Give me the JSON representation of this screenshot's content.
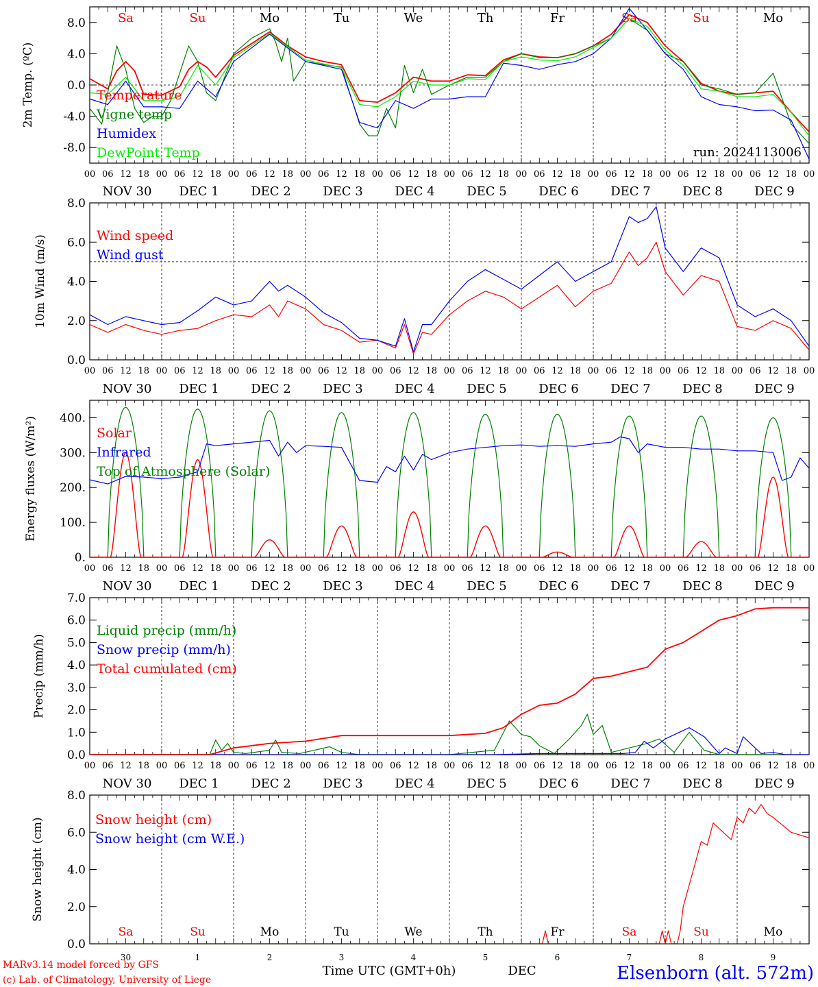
{
  "meta": {
    "run": "run: 2024113006",
    "credit_line1": "MARv3.14 model forced by GFS",
    "credit_line2": "(c) Lab. of Climatology, University of Liege",
    "xaxis_title": "Time UTC (GMT+0h)",
    "month": "DEC",
    "station": "Elsenborn (alt. 572m)"
  },
  "days": {
    "weekday": [
      "Sa",
      "Su",
      "Mo",
      "Tu",
      "We",
      "Th",
      "Fr",
      "Sa",
      "Su",
      "Mo"
    ],
    "weekend": [
      true,
      true,
      false,
      false,
      false,
      false,
      false,
      true,
      true,
      false
    ],
    "date_labels": [
      "NOV 30",
      "DEC  1",
      "DEC  2",
      "DEC  3",
      "DEC  4",
      "DEC  5",
      "DEC  6",
      "DEC  7",
      "DEC  8",
      "DEC  9"
    ],
    "day_numbers": [
      "30",
      "1",
      "2",
      "3",
      "4",
      "5",
      "6",
      "7",
      "8",
      "9"
    ],
    "hour_ticks": [
      "00",
      "06",
      "12",
      "18"
    ],
    "final_tick": "00"
  },
  "colors": {
    "red": "#ff0000",
    "green": "#008000",
    "blue": "#0000ff",
    "lightgreen": "#00ee00"
  },
  "chart_data": [
    {
      "type": "line",
      "ylabel": "2m Temp. (ºC)",
      "ylim": [
        -10,
        10
      ],
      "yticks": [
        "-8.0",
        "-4.0",
        "0.0",
        "4.0",
        "8.0"
      ],
      "ytick_values": [
        -8,
        -4,
        0,
        4,
        8
      ],
      "ref_line": 0,
      "x_unit": "hours since NOV 30 00 UTC",
      "series": [
        {
          "name": "Temperature",
          "color": "#ff0000",
          "x": [
            0,
            6,
            9,
            12,
            15,
            18,
            24,
            30,
            33,
            36,
            39,
            42,
            48,
            60,
            66,
            72,
            78,
            84,
            90,
            96,
            102,
            108,
            114,
            120,
            126,
            132,
            138,
            144,
            150,
            156,
            162,
            168,
            174,
            180,
            186,
            192,
            198,
            204,
            210,
            216,
            222,
            228,
            234,
            240
          ],
          "values": [
            0.8,
            -0.5,
            1.8,
            3.0,
            1.8,
            -1.2,
            -1.3,
            -0.2,
            2.0,
            3.0,
            2.3,
            1.0,
            3.8,
            6.8,
            5.0,
            3.6,
            3.0,
            2.6,
            -2.0,
            -2.2,
            -1.0,
            1.0,
            0.5,
            0.5,
            1.3,
            1.2,
            3.2,
            4.0,
            3.6,
            3.5,
            4.0,
            5.0,
            6.5,
            9.0,
            8.0,
            5.0,
            3.0,
            0.2,
            -0.8,
            -1.2,
            -1.0,
            -0.8,
            -3.5,
            -6.0
          ]
        },
        {
          "name": "Vigne temp",
          "color": "#008000",
          "x": [
            0,
            4,
            9,
            12,
            15,
            18,
            21,
            24,
            27,
            33,
            36,
            39,
            42,
            48,
            54,
            60,
            62,
            64,
            66,
            68,
            72,
            78,
            84,
            90,
            93,
            96,
            99,
            102,
            105,
            108,
            111,
            114,
            120,
            126,
            132,
            138,
            144,
            150,
            156,
            162,
            168,
            174,
            180,
            186,
            192,
            198,
            204,
            210,
            216,
            222,
            228,
            234,
            240
          ],
          "values": [
            -3.0,
            -5.0,
            5.0,
            2.0,
            -3.0,
            -4.8,
            -4.0,
            -4.0,
            -2.0,
            5.0,
            3.0,
            -1.0,
            -2.0,
            4.0,
            6.0,
            7.2,
            5.5,
            3.0,
            6.0,
            0.5,
            3.0,
            2.6,
            2.3,
            -5.0,
            -6.5,
            -6.5,
            -3.0,
            -5.5,
            2.5,
            -1.0,
            2.0,
            -1.2,
            0.0,
            1.0,
            1.0,
            3.0,
            4.0,
            3.5,
            3.5,
            4.0,
            5.0,
            6.0,
            8.5,
            7.0,
            4.0,
            3.0,
            0.0,
            -0.5,
            -1.2,
            -1.0,
            1.5,
            -5.0,
            -7.5
          ]
        },
        {
          "name": "Humidex",
          "color": "#0000ff",
          "x": [
            0,
            6,
            12,
            18,
            24,
            30,
            36,
            42,
            48,
            60,
            72,
            84,
            90,
            96,
            102,
            108,
            114,
            120,
            126,
            132,
            138,
            144,
            150,
            156,
            162,
            168,
            174,
            180,
            186,
            192,
            198,
            204,
            210,
            216,
            222,
            228,
            234,
            240
          ],
          "values": [
            -1.8,
            -2.5,
            0.5,
            -2.8,
            -2.8,
            -3.0,
            0.5,
            -1.5,
            3.0,
            6.5,
            3.0,
            2.0,
            -4.8,
            -5.5,
            -2.0,
            -3.0,
            -1.8,
            -1.8,
            -1.5,
            -1.5,
            2.8,
            2.5,
            2.0,
            2.6,
            3.0,
            4.0,
            6.0,
            9.8,
            7.0,
            4.0,
            2.0,
            -1.5,
            -2.5,
            -2.8,
            -3.3,
            -3.2,
            -4.5,
            -9.5
          ]
        },
        {
          "name": "DewPoint Temp",
          "color": "#00ee00",
          "x": [
            0,
            6,
            12,
            18,
            24,
            30,
            36,
            42,
            48,
            60,
            72,
            84,
            90,
            96,
            102,
            108,
            114,
            120,
            126,
            132,
            138,
            144,
            150,
            156,
            162,
            168,
            174,
            180,
            186,
            192,
            198,
            204,
            210,
            216,
            222,
            228,
            234,
            240
          ],
          "values": [
            -1.0,
            -1.2,
            1.0,
            -2.0,
            -2.0,
            -1.5,
            2.5,
            0.0,
            3.5,
            6.6,
            3.2,
            2.2,
            -2.5,
            -2.8,
            -1.5,
            0.5,
            0.0,
            0.0,
            0.8,
            0.7,
            3.0,
            3.6,
            3.2,
            3.1,
            3.6,
            4.8,
            6.0,
            8.5,
            7.5,
            4.5,
            2.5,
            -0.5,
            -0.8,
            -1.5,
            -1.5,
            -1.2,
            -3.5,
            -6.5
          ]
        }
      ]
    },
    {
      "type": "line",
      "ylabel": "10m Wind (m/s)",
      "ylim": [
        0,
        8
      ],
      "yticks": [
        "0.0",
        "2.0",
        "4.0",
        "6.0",
        "8.0"
      ],
      "ytick_values": [
        0,
        2,
        4,
        6,
        8
      ],
      "ref_line": 5,
      "x_unit": "hours since NOV 30 00 UTC",
      "series": [
        {
          "name": "Wind speed",
          "color": "#ff0000",
          "x": [
            0,
            6,
            12,
            18,
            24,
            30,
            36,
            42,
            48,
            54,
            60,
            63,
            66,
            72,
            78,
            84,
            90,
            96,
            102,
            105,
            108,
            111,
            114,
            120,
            126,
            132,
            138,
            144,
            150,
            156,
            162,
            168,
            174,
            180,
            183,
            186,
            189,
            192,
            198,
            204,
            210,
            216,
            222,
            228,
            234,
            240
          ],
          "values": [
            1.8,
            1.4,
            1.8,
            1.5,
            1.3,
            1.5,
            1.6,
            2.0,
            2.3,
            2.2,
            2.8,
            2.2,
            3.0,
            2.6,
            1.8,
            1.5,
            0.9,
            1.0,
            0.6,
            1.8,
            0.3,
            1.4,
            1.3,
            2.3,
            3.0,
            3.5,
            3.2,
            2.6,
            3.2,
            3.8,
            2.7,
            3.5,
            3.9,
            5.5,
            4.8,
            5.2,
            6.0,
            4.5,
            3.3,
            4.3,
            4.0,
            1.7,
            1.5,
            2.0,
            1.6,
            0.5
          ]
        },
        {
          "name": "Wind gust",
          "color": "#0000ff",
          "x": [
            0,
            6,
            12,
            18,
            24,
            30,
            36,
            42,
            48,
            54,
            60,
            63,
            66,
            72,
            78,
            84,
            90,
            96,
            102,
            105,
            108,
            111,
            114,
            120,
            126,
            132,
            138,
            144,
            150,
            156,
            162,
            168,
            174,
            180,
            183,
            186,
            189,
            192,
            198,
            204,
            210,
            216,
            222,
            228,
            234,
            240
          ],
          "values": [
            2.3,
            1.8,
            2.2,
            2.0,
            1.8,
            1.9,
            2.5,
            3.2,
            2.8,
            3.0,
            4.0,
            3.5,
            3.8,
            3.2,
            2.4,
            1.9,
            1.1,
            1.0,
            0.7,
            2.1,
            0.4,
            1.8,
            1.8,
            3.0,
            4.0,
            4.6,
            4.1,
            3.6,
            4.3,
            5.0,
            4.0,
            4.5,
            5.0,
            7.3,
            7.0,
            7.2,
            7.8,
            5.7,
            4.5,
            5.7,
            5.2,
            2.8,
            2.2,
            2.6,
            2.0,
            0.7
          ]
        }
      ]
    },
    {
      "type": "line",
      "ylabel": "Energy fluxes (W/m²)",
      "ylim": [
        0,
        450
      ],
      "yticks": [
        "0.",
        "100.",
        "200.",
        "300.",
        "400."
      ],
      "ytick_values": [
        0,
        100,
        200,
        300,
        400
      ],
      "x_unit": "hours since NOV 30 00 UTC",
      "solar_peaks": [
        300,
        280,
        50,
        90,
        130,
        90,
        15,
        90,
        45,
        230
      ],
      "toa_peaks": [
        430,
        425,
        420,
        415,
        415,
        410,
        410,
        405,
        405,
        400
      ],
      "series": [
        {
          "name": "Solar",
          "color": "#ff0000"
        },
        {
          "name": "Infrared",
          "color": "#0000ff",
          "x": [
            0,
            6,
            12,
            18,
            24,
            30,
            36,
            39,
            42,
            48,
            54,
            60,
            63,
            66,
            69,
            72,
            78,
            84,
            90,
            96,
            99,
            102,
            105,
            108,
            111,
            114,
            120,
            126,
            132,
            138,
            144,
            150,
            156,
            162,
            168,
            174,
            177,
            180,
            183,
            186,
            192,
            198,
            204,
            210,
            216,
            222,
            228,
            231,
            234,
            237,
            240
          ],
          "values": [
            222,
            210,
            232,
            230,
            225,
            230,
            245,
            325,
            320,
            325,
            330,
            335,
            290,
            330,
            300,
            320,
            318,
            315,
            220,
            215,
            260,
            245,
            290,
            250,
            295,
            280,
            300,
            310,
            315,
            320,
            322,
            318,
            320,
            318,
            325,
            330,
            345,
            340,
            300,
            325,
            315,
            315,
            310,
            310,
            305,
            305,
            300,
            220,
            230,
            285,
            255
          ]
        },
        {
          "name": "Top of Atmosphere (Solar)",
          "color": "#008000"
        }
      ]
    },
    {
      "type": "line",
      "ylabel": "Precip (mm/h)",
      "ylim": [
        0,
        7
      ],
      "yticks": [
        "0.0",
        "1.0",
        "2.0",
        "3.0",
        "4.0",
        "5.0",
        "6.0",
        "7.0"
      ],
      "ytick_values": [
        0,
        1,
        2,
        3,
        4,
        5,
        6,
        7
      ],
      "x_unit": "hours since NOV 30 00 UTC",
      "series": [
        {
          "name": "Liquid precip (mm/h)",
          "color": "#008000",
          "x": [
            0,
            40,
            42,
            44,
            46,
            48,
            52,
            60,
            62,
            64,
            70,
            80,
            84,
            90,
            95,
            120,
            135,
            140,
            144,
            147,
            150,
            155,
            160,
            164,
            166,
            168,
            171,
            174,
            180,
            186,
            190,
            195,
            200,
            205,
            210,
            240
          ],
          "values": [
            0,
            0,
            0.65,
            0.2,
            0.5,
            0.1,
            0.05,
            0.2,
            0.65,
            0.1,
            0.05,
            0.35,
            0.1,
            0,
            0,
            0,
            0.2,
            1.5,
            0.9,
            0.8,
            0.4,
            0.05,
            0.7,
            1.3,
            1.8,
            0.9,
            1.3,
            0.1,
            0.3,
            0.5,
            0.7,
            0.1,
            1.0,
            0.2,
            0,
            0
          ]
        },
        {
          "name": "Snow precip (mm/h)",
          "color": "#0000ff",
          "x": [
            0,
            135,
            150,
            178,
            182,
            185,
            188,
            192,
            200,
            205,
            210,
            212,
            216,
            218,
            222,
            224,
            228,
            232,
            240
          ],
          "values": [
            0,
            0,
            0.05,
            0.05,
            0.1,
            0.6,
            0.3,
            0.7,
            1.2,
            0.8,
            0.05,
            0.3,
            0.05,
            0.8,
            0.3,
            0.05,
            0.1,
            0,
            0
          ]
        },
        {
          "name": "Total cumulated (cm)",
          "color": "#ff0000",
          "x": [
            0,
            40,
            48,
            60,
            72,
            84,
            96,
            120,
            132,
            138,
            144,
            150,
            156,
            162,
            168,
            174,
            180,
            186,
            192,
            198,
            204,
            210,
            216,
            222,
            228,
            234,
            240
          ],
          "values": [
            0,
            0,
            0.3,
            0.5,
            0.6,
            0.85,
            0.85,
            0.85,
            0.95,
            1.2,
            1.8,
            2.2,
            2.3,
            2.7,
            3.4,
            3.5,
            3.7,
            3.9,
            4.7,
            5.0,
            5.5,
            6.0,
            6.2,
            6.5,
            6.55,
            6.55,
            6.55
          ]
        }
      ]
    },
    {
      "type": "line",
      "ylabel": "Snow height (cm)",
      "ylim": [
        0,
        8
      ],
      "yticks": [
        "0.0",
        "2.0",
        "4.0",
        "6.0",
        "8.0"
      ],
      "ytick_values": [
        0,
        2,
        4,
        6,
        8
      ],
      "x_unit": "hours since NOV 30 00 UTC",
      "series": [
        {
          "name": "Snow height (cm)",
          "color": "#ff0000",
          "x": [
            0,
            150,
            151,
            152,
            153,
            154,
            190,
            191,
            192,
            193,
            194,
            195,
            196,
            197,
            198,
            204,
            206,
            208,
            210,
            214,
            216,
            218,
            220,
            222,
            224,
            226,
            228,
            234,
            240
          ],
          "values": [
            0,
            0,
            0,
            0.7,
            0,
            0,
            0,
            0.7,
            0,
            0.7,
            0,
            0,
            0,
            0.7,
            2.0,
            5.5,
            5.3,
            6.5,
            6.2,
            5.6,
            6.8,
            6.5,
            7.3,
            7.0,
            7.5,
            7.0,
            6.8,
            6.0,
            5.7
          ]
        },
        {
          "name": "Snow height (cm W.E.)",
          "color": "#0000ff"
        }
      ]
    }
  ]
}
